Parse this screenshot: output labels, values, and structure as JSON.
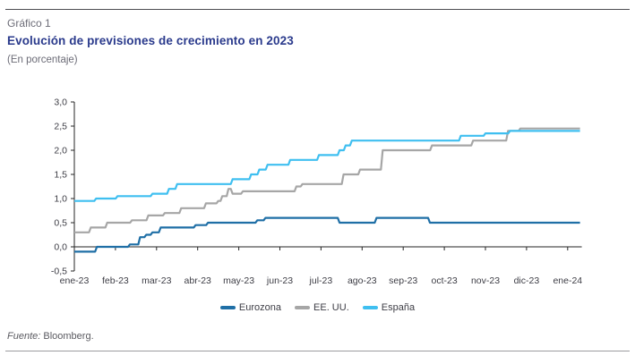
{
  "header": {
    "kicker": "Gráfico 1",
    "title": "Evolución de previsiones de crecimiento en 2023",
    "subtitle": "(En porcentaje)"
  },
  "footer": {
    "source_label": "Fuente:",
    "source_value": "Bloomberg."
  },
  "colors": {
    "title": "#2a3a8c",
    "muted_text": "#6c6c77",
    "axis": "#262626",
    "tick_text": "#3d3d45"
  },
  "chart_data": {
    "type": "line",
    "title": "Evolución de previsiones de crecimiento en 2023",
    "ylabel": "En porcentaje",
    "ylim": [
      -0.5,
      3.0
    ],
    "y_tick_values": [
      3.0,
      2.5,
      2.0,
      1.5,
      1.0,
      0.5,
      0.0,
      -0.5
    ],
    "y_tick_labels": [
      "3,0",
      "2,5",
      "2,0",
      "1,5",
      "1,0",
      "0,5",
      "0,0",
      "-0,5"
    ],
    "x_tick_labels": [
      "ene-23",
      "feb-23",
      "mar-23",
      "abr-23",
      "may-23",
      "jun-23",
      "jul-23",
      "ago-23",
      "sep-23",
      "oct-23",
      "nov-23",
      "dic-23",
      "ene-24"
    ],
    "x_range_months": [
      0,
      12.3
    ],
    "grid": false,
    "legend_position": "bottom",
    "series": [
      {
        "name": "Eurozona",
        "color": "#1f6fa6",
        "points": [
          [
            0,
            -0.1
          ],
          [
            0.55,
            0.0
          ],
          [
            1.35,
            0.05
          ],
          [
            1.6,
            0.2
          ],
          [
            1.75,
            0.25
          ],
          [
            1.9,
            0.3
          ],
          [
            2.1,
            0.4
          ],
          [
            2.95,
            0.45
          ],
          [
            3.25,
            0.5
          ],
          [
            4.45,
            0.55
          ],
          [
            4.65,
            0.6
          ],
          [
            6.45,
            0.5
          ],
          [
            7.35,
            0.6
          ],
          [
            8.65,
            0.5
          ],
          [
            12.3,
            0.5
          ]
        ]
      },
      {
        "name": "EE. UU.",
        "color": "#a6a6a6",
        "points": [
          [
            0,
            0.3
          ],
          [
            0.4,
            0.4
          ],
          [
            0.8,
            0.5
          ],
          [
            1.4,
            0.55
          ],
          [
            1.8,
            0.65
          ],
          [
            2.2,
            0.7
          ],
          [
            2.6,
            0.8
          ],
          [
            3.2,
            0.9
          ],
          [
            3.5,
            0.95
          ],
          [
            3.6,
            1.05
          ],
          [
            3.75,
            1.2
          ],
          [
            3.85,
            1.1
          ],
          [
            4.1,
            1.15
          ],
          [
            5.4,
            1.25
          ],
          [
            5.55,
            1.3
          ],
          [
            6.55,
            1.5
          ],
          [
            6.95,
            1.6
          ],
          [
            7.5,
            2.0
          ],
          [
            8.7,
            2.1
          ],
          [
            9.7,
            2.2
          ],
          [
            10.55,
            2.4
          ],
          [
            10.85,
            2.45
          ],
          [
            12.3,
            2.45
          ]
        ]
      },
      {
        "name": "España",
        "color": "#3fbff0",
        "points": [
          [
            0,
            0.95
          ],
          [
            0.53,
            1.0
          ],
          [
            1.05,
            1.05
          ],
          [
            1.9,
            1.1
          ],
          [
            2.3,
            1.2
          ],
          [
            2.5,
            1.3
          ],
          [
            3.85,
            1.4
          ],
          [
            4.3,
            1.5
          ],
          [
            4.5,
            1.6
          ],
          [
            4.7,
            1.7
          ],
          [
            5.25,
            1.8
          ],
          [
            5.95,
            1.9
          ],
          [
            6.45,
            2.0
          ],
          [
            6.6,
            2.1
          ],
          [
            6.75,
            2.2
          ],
          [
            9.4,
            2.3
          ],
          [
            10.0,
            2.35
          ],
          [
            10.6,
            2.4
          ],
          [
            12.3,
            2.4
          ]
        ]
      }
    ]
  }
}
